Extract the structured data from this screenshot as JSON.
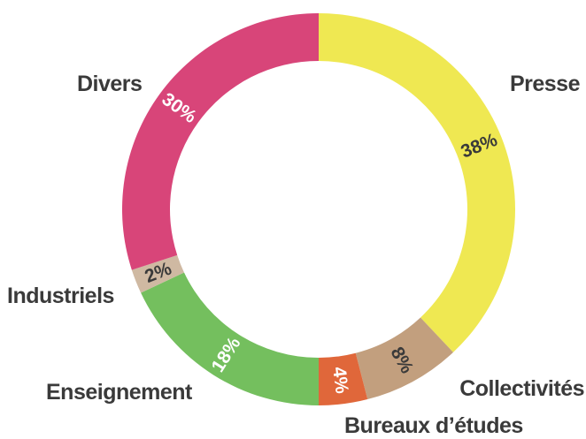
{
  "chart_data": {
    "type": "pie",
    "variant": "donut",
    "start": "top",
    "direction": "clockwise",
    "slices": [
      {
        "label": "Presse",
        "value": 38,
        "display": "38%",
        "color": "#efe852",
        "text_color": "#3a3a3a"
      },
      {
        "label": "Collectivités",
        "value": 8,
        "display": "8%",
        "color": "#c29f7e",
        "text_color": "#3a3a3a"
      },
      {
        "label": "Bureaux d’études",
        "value": 4,
        "display": "4%",
        "color": "#e0673a",
        "text_color": "#ffffff"
      },
      {
        "label": "Enseignement",
        "value": 18,
        "display": "18%",
        "color": "#74bf5e",
        "text_color": "#ffffff"
      },
      {
        "label": "Industriels",
        "value": 2,
        "display": "2%",
        "color": "#cfb9a2",
        "text_color": "#3a3a3a"
      },
      {
        "label": "Divers",
        "value": 30,
        "display": "30%",
        "color": "#d84579",
        "text_color": "#ffffff"
      }
    ]
  }
}
